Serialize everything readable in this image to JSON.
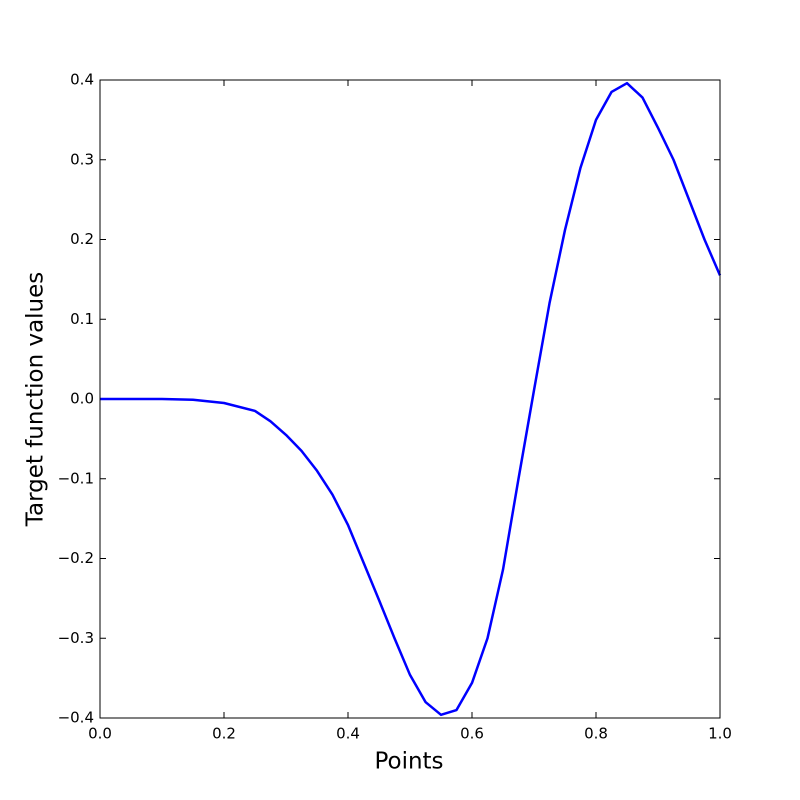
{
  "chart_data": {
    "type": "line",
    "xlabel": "Points",
    "ylabel": "Target function values",
    "x": [
      0,
      0.05,
      0.1,
      0.15,
      0.2,
      0.25,
      0.275,
      0.3,
      0.325,
      0.35,
      0.375,
      0.4,
      0.425,
      0.45,
      0.475,
      0.5,
      0.525,
      0.55,
      0.575,
      0.6,
      0.625,
      0.65,
      0.675,
      0.7,
      0.725,
      0.75,
      0.775,
      0.8,
      0.825,
      0.85,
      0.875,
      0.9,
      0.925,
      0.95,
      0.975,
      1.0
    ],
    "series": [
      {
        "color": "#0000ff",
        "values": [
          0,
          0,
          0,
          -0.001,
          -0.005,
          -0.015,
          -0.028,
          -0.045,
          -0.065,
          -0.09,
          -0.12,
          -0.158,
          -0.205,
          -0.252,
          -0.3,
          -0.346,
          -0.38,
          -0.396,
          -0.39,
          -0.356,
          -0.3,
          -0.214,
          -0.1,
          0.011,
          0.12,
          0.212,
          0.29,
          0.35,
          0.385,
          0.396,
          0.378,
          0.34,
          0.3,
          0.25,
          0.2,
          0.155
        ]
      }
    ],
    "xlim": [
      0,
      1
    ],
    "ylim": [
      -0.4,
      0.4
    ],
    "xticks": [
      {
        "value": 0,
        "label": "0.0"
      },
      0.2,
      0.4,
      0.6,
      0.8,
      {
        "value": 1,
        "label": "1.0"
      }
    ],
    "yticks": [
      {
        "value": -0.4,
        "label": "−0.4"
      },
      {
        "value": -0.3,
        "label": "−0.3"
      },
      {
        "value": -0.2,
        "label": "−0.2"
      },
      {
        "value": -0.1,
        "label": "−0.1"
      },
      {
        "value": 0,
        "label": "0.0"
      },
      0.1,
      0.2,
      0.3,
      0.4
    ],
    "grid": false
  }
}
